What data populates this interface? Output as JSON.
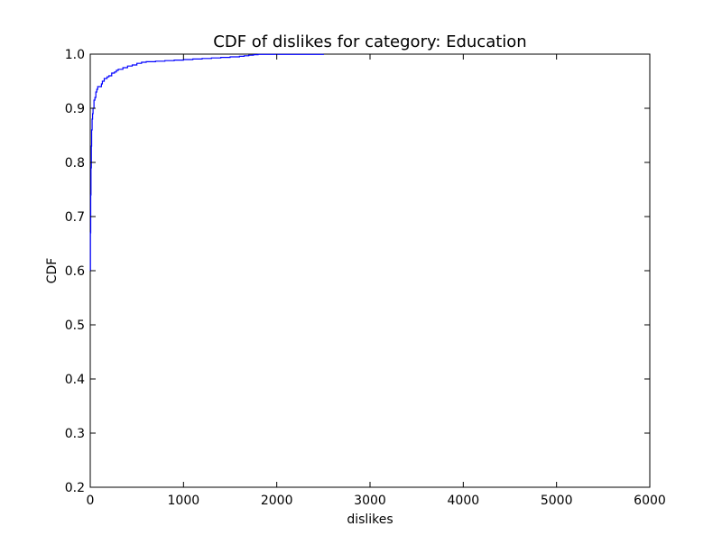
{
  "chart_data": {
    "type": "line",
    "title": "CDF of dislikes for category: Education",
    "xlabel": "dislikes",
    "ylabel": "CDF",
    "xlim": [
      0,
      6000
    ],
    "ylim": [
      0.2,
      1.0
    ],
    "x_ticks": [
      0,
      1000,
      2000,
      3000,
      4000,
      5000,
      6000
    ],
    "x_tick_labels": [
      "0",
      "1000",
      "2000",
      "3000",
      "4000",
      "5000",
      "6000"
    ],
    "y_ticks": [
      0.2,
      0.3,
      0.4,
      0.5,
      0.6,
      0.7,
      0.8,
      0.9,
      1.0
    ],
    "y_tick_labels": [
      "0.2",
      "0.3",
      "0.4",
      "0.5",
      "0.6",
      "0.7",
      "0.8",
      "0.9",
      "1.0"
    ],
    "grid": false,
    "legend": "none",
    "series": [
      {
        "color": "#0000ff",
        "x": [
          0,
          2,
          5,
          8,
          12,
          15,
          20,
          25,
          30,
          40,
          50,
          60,
          70,
          80,
          100,
          120,
          130,
          150,
          180,
          200,
          230,
          260,
          280,
          300,
          350,
          400,
          450,
          500,
          550,
          600,
          700,
          800,
          900,
          1000,
          1100,
          1200,
          1300,
          1400,
          1500,
          1600,
          1650,
          1700,
          1750,
          1800,
          2000,
          2200,
          2500
        ],
        "y": [
          0.6,
          0.67,
          0.74,
          0.79,
          0.83,
          0.86,
          0.88,
          0.89,
          0.9,
          0.915,
          0.92,
          0.93,
          0.935,
          0.94,
          0.94,
          0.945,
          0.95,
          0.955,
          0.958,
          0.96,
          0.965,
          0.967,
          0.97,
          0.972,
          0.975,
          0.978,
          0.98,
          0.983,
          0.985,
          0.986,
          0.987,
          0.988,
          0.989,
          0.99,
          0.991,
          0.992,
          0.993,
          0.994,
          0.995,
          0.996,
          0.997,
          0.998,
          0.999,
          0.9995,
          0.9995,
          0.9995,
          1.0
        ]
      }
    ]
  }
}
